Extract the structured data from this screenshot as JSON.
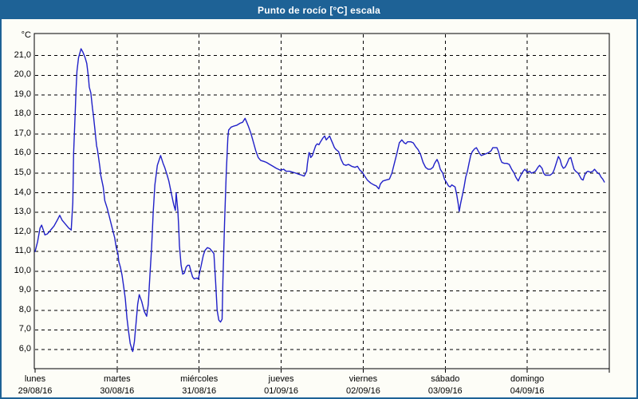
{
  "window": {
    "title": "Punto de rocío [°C] escala",
    "titlebar_color": "#1e6296",
    "border_color": "#1e6296",
    "background_color": "#fdfdf7"
  },
  "chart_data": {
    "type": "line",
    "title": "Punto de rocío [°C] escala",
    "ylabel": "°C",
    "xlabel": "",
    "ylim": [
      5.0,
      22.1
    ],
    "xlim_days": [
      0,
      7
    ],
    "grid": "dashed-black",
    "legend_position": "none",
    "line_color": "#2020c8",
    "axis_color": "#000000",
    "y_ticks": [
      {
        "label": "21,0",
        "value": 21
      },
      {
        "label": "20,0",
        "value": 20
      },
      {
        "label": "19,0",
        "value": 19
      },
      {
        "label": "18,0",
        "value": 18
      },
      {
        "label": "17,0",
        "value": 17
      },
      {
        "label": "16,0",
        "value": 16
      },
      {
        "label": "15,0",
        "value": 15
      },
      {
        "label": "14,0",
        "value": 14
      },
      {
        "label": "13,0",
        "value": 13
      },
      {
        "label": "12,0",
        "value": 12
      },
      {
        "label": "11,0",
        "value": 11
      },
      {
        "label": "10,0",
        "value": 10
      },
      {
        "label": "9,0",
        "value": 9
      },
      {
        "label": "8,0",
        "value": 8
      },
      {
        "label": "7,0",
        "value": 7
      },
      {
        "label": "6,0",
        "value": 6
      }
    ],
    "x_ticks": [
      {
        "name": "lunes",
        "date": "29/08/16",
        "day_index": 0
      },
      {
        "name": "martes",
        "date": "30/08/16",
        "day_index": 1
      },
      {
        "name": "miércoles",
        "date": "31/08/16",
        "day_index": 2
      },
      {
        "name": "jueves",
        "date": "01/09/16",
        "day_index": 3
      },
      {
        "name": "viernes",
        "date": "02/09/16",
        "day_index": 4
      },
      {
        "name": "sábado",
        "date": "03/09/16",
        "day_index": 5
      },
      {
        "name": "domingo",
        "date": "04/09/16",
        "day_index": 6
      }
    ],
    "series": [
      {
        "name": "Punto de rocío [°C]",
        "x_unit": "días desde lunes 29/08/16 00:00",
        "y_unit": "°C",
        "points": [
          [
            0.0,
            11.0
          ],
          [
            0.03,
            11.5
          ],
          [
            0.06,
            12.2
          ],
          [
            0.08,
            12.35
          ],
          [
            0.1,
            12.1
          ],
          [
            0.12,
            11.85
          ],
          [
            0.15,
            11.9
          ],
          [
            0.17,
            12.0
          ],
          [
            0.2,
            12.15
          ],
          [
            0.23,
            12.3
          ],
          [
            0.27,
            12.6
          ],
          [
            0.3,
            12.85
          ],
          [
            0.33,
            12.6
          ],
          [
            0.37,
            12.4
          ],
          [
            0.41,
            12.2
          ],
          [
            0.44,
            12.1
          ],
          [
            0.46,
            13.5
          ],
          [
            0.47,
            16.0
          ],
          [
            0.49,
            18.2
          ],
          [
            0.5,
            19.3
          ],
          [
            0.51,
            20.2
          ],
          [
            0.53,
            20.9
          ],
          [
            0.55,
            21.2
          ],
          [
            0.56,
            21.35
          ],
          [
            0.58,
            21.2
          ],
          [
            0.59,
            21.1
          ],
          [
            0.61,
            20.9
          ],
          [
            0.63,
            20.6
          ],
          [
            0.65,
            19.9
          ],
          [
            0.66,
            19.4
          ],
          [
            0.68,
            19.1
          ],
          [
            0.7,
            18.3
          ],
          [
            0.71,
            18.0
          ],
          [
            0.73,
            17.2
          ],
          [
            0.75,
            16.4
          ],
          [
            0.76,
            16.2
          ],
          [
            0.79,
            15.3
          ],
          [
            0.8,
            14.9
          ],
          [
            0.83,
            14.3
          ],
          [
            0.85,
            13.6
          ],
          [
            0.88,
            13.2
          ],
          [
            0.91,
            12.7
          ],
          [
            0.94,
            12.2
          ],
          [
            0.97,
            11.7
          ],
          [
            0.99,
            11.2
          ],
          [
            1.01,
            10.9
          ],
          [
            1.02,
            10.5
          ],
          [
            1.04,
            10.2
          ],
          [
            1.06,
            9.8
          ],
          [
            1.08,
            9.2
          ],
          [
            1.1,
            8.6
          ],
          [
            1.12,
            7.6
          ],
          [
            1.14,
            6.9
          ],
          [
            1.16,
            6.3
          ],
          [
            1.19,
            5.9
          ],
          [
            1.21,
            6.4
          ],
          [
            1.23,
            7.3
          ],
          [
            1.25,
            8.3
          ],
          [
            1.27,
            8.8
          ],
          [
            1.3,
            8.45
          ],
          [
            1.33,
            7.95
          ],
          [
            1.36,
            7.7
          ],
          [
            1.38,
            8.3
          ],
          [
            1.4,
            9.8
          ],
          [
            1.42,
            11.2
          ],
          [
            1.44,
            13.0
          ],
          [
            1.46,
            14.4
          ],
          [
            1.49,
            15.4
          ],
          [
            1.53,
            15.9
          ],
          [
            1.56,
            15.5
          ],
          [
            1.58,
            15.3
          ],
          [
            1.61,
            14.9
          ],
          [
            1.63,
            14.6
          ],
          [
            1.66,
            14.0
          ],
          [
            1.69,
            13.4
          ],
          [
            1.71,
            13.1
          ],
          [
            1.72,
            14.0
          ],
          [
            1.74,
            13.1
          ],
          [
            1.75,
            12.3
          ],
          [
            1.76,
            11.3
          ],
          [
            1.78,
            10.3
          ],
          [
            1.8,
            9.85
          ],
          [
            1.82,
            9.9
          ],
          [
            1.84,
            10.2
          ],
          [
            1.86,
            10.3
          ],
          [
            1.88,
            10.3
          ],
          [
            1.9,
            10.0
          ],
          [
            1.92,
            9.7
          ],
          [
            1.94,
            9.6
          ],
          [
            1.97,
            9.65
          ],
          [
            1.99,
            9.6
          ],
          [
            2.02,
            10.2
          ],
          [
            2.05,
            10.8
          ],
          [
            2.07,
            11.05
          ],
          [
            2.1,
            11.2
          ],
          [
            2.13,
            11.15
          ],
          [
            2.16,
            11.0
          ],
          [
            2.18,
            10.9
          ],
          [
            2.2,
            9.5
          ],
          [
            2.22,
            8.0
          ],
          [
            2.24,
            7.5
          ],
          [
            2.26,
            7.4
          ],
          [
            2.28,
            7.55
          ],
          [
            2.29,
            9.5
          ],
          [
            2.31,
            12.5
          ],
          [
            2.33,
            15.0
          ],
          [
            2.35,
            16.8
          ],
          [
            2.36,
            17.2
          ],
          [
            2.39,
            17.35
          ],
          [
            2.42,
            17.4
          ],
          [
            2.46,
            17.45
          ],
          [
            2.5,
            17.55
          ],
          [
            2.53,
            17.6
          ],
          [
            2.56,
            17.8
          ],
          [
            2.58,
            17.6
          ],
          [
            2.6,
            17.4
          ],
          [
            2.63,
            17.05
          ],
          [
            2.66,
            16.6
          ],
          [
            2.69,
            16.15
          ],
          [
            2.72,
            15.8
          ],
          [
            2.75,
            15.65
          ],
          [
            2.79,
            15.6
          ],
          [
            2.82,
            15.55
          ],
          [
            2.86,
            15.45
          ],
          [
            2.9,
            15.35
          ],
          [
            2.94,
            15.25
          ],
          [
            2.99,
            15.15
          ],
          [
            3.03,
            15.2
          ],
          [
            3.06,
            15.1
          ],
          [
            3.1,
            15.1
          ],
          [
            3.14,
            15.05
          ],
          [
            3.18,
            15.0
          ],
          [
            3.21,
            14.95
          ],
          [
            3.25,
            14.9
          ],
          [
            3.28,
            14.85
          ],
          [
            3.31,
            15.1
          ],
          [
            3.32,
            15.5
          ],
          [
            3.34,
            16.05
          ],
          [
            3.35,
            16.0
          ],
          [
            3.36,
            15.8
          ],
          [
            3.38,
            15.9
          ],
          [
            3.4,
            16.15
          ],
          [
            3.42,
            16.4
          ],
          [
            3.44,
            16.5
          ],
          [
            3.46,
            16.45
          ],
          [
            3.48,
            16.6
          ],
          [
            3.51,
            16.8
          ],
          [
            3.53,
            16.9
          ],
          [
            3.55,
            16.7
          ],
          [
            3.57,
            16.8
          ],
          [
            3.59,
            16.9
          ],
          [
            3.61,
            16.7
          ],
          [
            3.63,
            16.5
          ],
          [
            3.65,
            16.3
          ],
          [
            3.67,
            16.2
          ],
          [
            3.7,
            16.1
          ],
          [
            3.73,
            15.7
          ],
          [
            3.76,
            15.45
          ],
          [
            3.79,
            15.4
          ],
          [
            3.82,
            15.45
          ],
          [
            3.86,
            15.35
          ],
          [
            3.9,
            15.3
          ],
          [
            3.93,
            15.35
          ],
          [
            3.96,
            15.15
          ],
          [
            3.99,
            15.05
          ],
          [
            4.01,
            14.9
          ],
          [
            4.05,
            14.65
          ],
          [
            4.09,
            14.5
          ],
          [
            4.13,
            14.4
          ],
          [
            4.16,
            14.35
          ],
          [
            4.19,
            14.2
          ],
          [
            4.21,
            14.45
          ],
          [
            4.24,
            14.6
          ],
          [
            4.28,
            14.65
          ],
          [
            4.32,
            14.7
          ],
          [
            4.35,
            15.0
          ],
          [
            4.38,
            15.5
          ],
          [
            4.41,
            16.0
          ],
          [
            4.44,
            16.55
          ],
          [
            4.47,
            16.7
          ],
          [
            4.5,
            16.55
          ],
          [
            4.52,
            16.5
          ],
          [
            4.54,
            16.6
          ],
          [
            4.58,
            16.6
          ],
          [
            4.61,
            16.55
          ],
          [
            4.64,
            16.35
          ],
          [
            4.67,
            16.2
          ],
          [
            4.7,
            15.95
          ],
          [
            4.73,
            15.55
          ],
          [
            4.76,
            15.3
          ],
          [
            4.79,
            15.2
          ],
          [
            4.82,
            15.2
          ],
          [
            4.85,
            15.3
          ],
          [
            4.87,
            15.5
          ],
          [
            4.9,
            15.7
          ],
          [
            4.92,
            15.5
          ],
          [
            4.94,
            15.2
          ],
          [
            4.97,
            15.0
          ],
          [
            4.99,
            14.7
          ],
          [
            5.02,
            14.5
          ],
          [
            5.04,
            14.35
          ],
          [
            5.06,
            14.3
          ],
          [
            5.08,
            14.4
          ],
          [
            5.1,
            14.35
          ],
          [
            5.12,
            14.3
          ],
          [
            5.14,
            13.9
          ],
          [
            5.16,
            13.4
          ],
          [
            5.17,
            13.05
          ],
          [
            5.19,
            13.5
          ],
          [
            5.21,
            13.9
          ],
          [
            5.23,
            14.3
          ],
          [
            5.25,
            14.8
          ],
          [
            5.27,
            15.1
          ],
          [
            5.29,
            15.5
          ],
          [
            5.31,
            15.9
          ],
          [
            5.33,
            16.1
          ],
          [
            5.36,
            16.25
          ],
          [
            5.38,
            16.3
          ],
          [
            5.4,
            16.15
          ],
          [
            5.42,
            16.0
          ],
          [
            5.44,
            15.9
          ],
          [
            5.47,
            15.95
          ],
          [
            5.5,
            16.0
          ],
          [
            5.53,
            16.05
          ],
          [
            5.56,
            16.15
          ],
          [
            5.58,
            16.3
          ],
          [
            5.61,
            16.3
          ],
          [
            5.63,
            16.3
          ],
          [
            5.65,
            16.1
          ],
          [
            5.67,
            15.75
          ],
          [
            5.69,
            15.55
          ],
          [
            5.72,
            15.5
          ],
          [
            5.75,
            15.5
          ],
          [
            5.78,
            15.45
          ],
          [
            5.81,
            15.2
          ],
          [
            5.84,
            15.0
          ],
          [
            5.86,
            14.8
          ],
          [
            5.89,
            14.6
          ],
          [
            5.91,
            14.8
          ],
          [
            5.93,
            14.95
          ],
          [
            5.95,
            15.1
          ],
          [
            5.97,
            15.2
          ],
          [
            6.0,
            15.05
          ],
          [
            6.03,
            15.1
          ],
          [
            6.05,
            15.0
          ],
          [
            6.08,
            15.05
          ],
          [
            6.1,
            15.1
          ],
          [
            6.13,
            15.3
          ],
          [
            6.15,
            15.4
          ],
          [
            6.18,
            15.25
          ],
          [
            6.2,
            15.0
          ],
          [
            6.22,
            14.9
          ],
          [
            6.25,
            14.9
          ],
          [
            6.28,
            14.9
          ],
          [
            6.31,
            15.0
          ],
          [
            6.33,
            15.2
          ],
          [
            6.36,
            15.6
          ],
          [
            6.38,
            15.85
          ],
          [
            6.4,
            15.7
          ],
          [
            6.42,
            15.4
          ],
          [
            6.44,
            15.25
          ],
          [
            6.46,
            15.3
          ],
          [
            6.48,
            15.45
          ],
          [
            6.51,
            15.75
          ],
          [
            6.53,
            15.8
          ],
          [
            6.55,
            15.5
          ],
          [
            6.57,
            15.2
          ],
          [
            6.59,
            15.1
          ],
          [
            6.62,
            15.0
          ],
          [
            6.64,
            14.85
          ],
          [
            6.66,
            14.7
          ],
          [
            6.68,
            14.65
          ],
          [
            6.7,
            14.9
          ],
          [
            6.72,
            15.05
          ],
          [
            6.74,
            15.1
          ],
          [
            6.77,
            15.05
          ],
          [
            6.8,
            15.1
          ],
          [
            6.82,
            15.2
          ],
          [
            6.84,
            15.1
          ],
          [
            6.86,
            15.0
          ],
          [
            6.88,
            14.95
          ],
          [
            6.9,
            14.8
          ],
          [
            6.92,
            14.7
          ],
          [
            6.94,
            14.55
          ]
        ]
      }
    ]
  }
}
